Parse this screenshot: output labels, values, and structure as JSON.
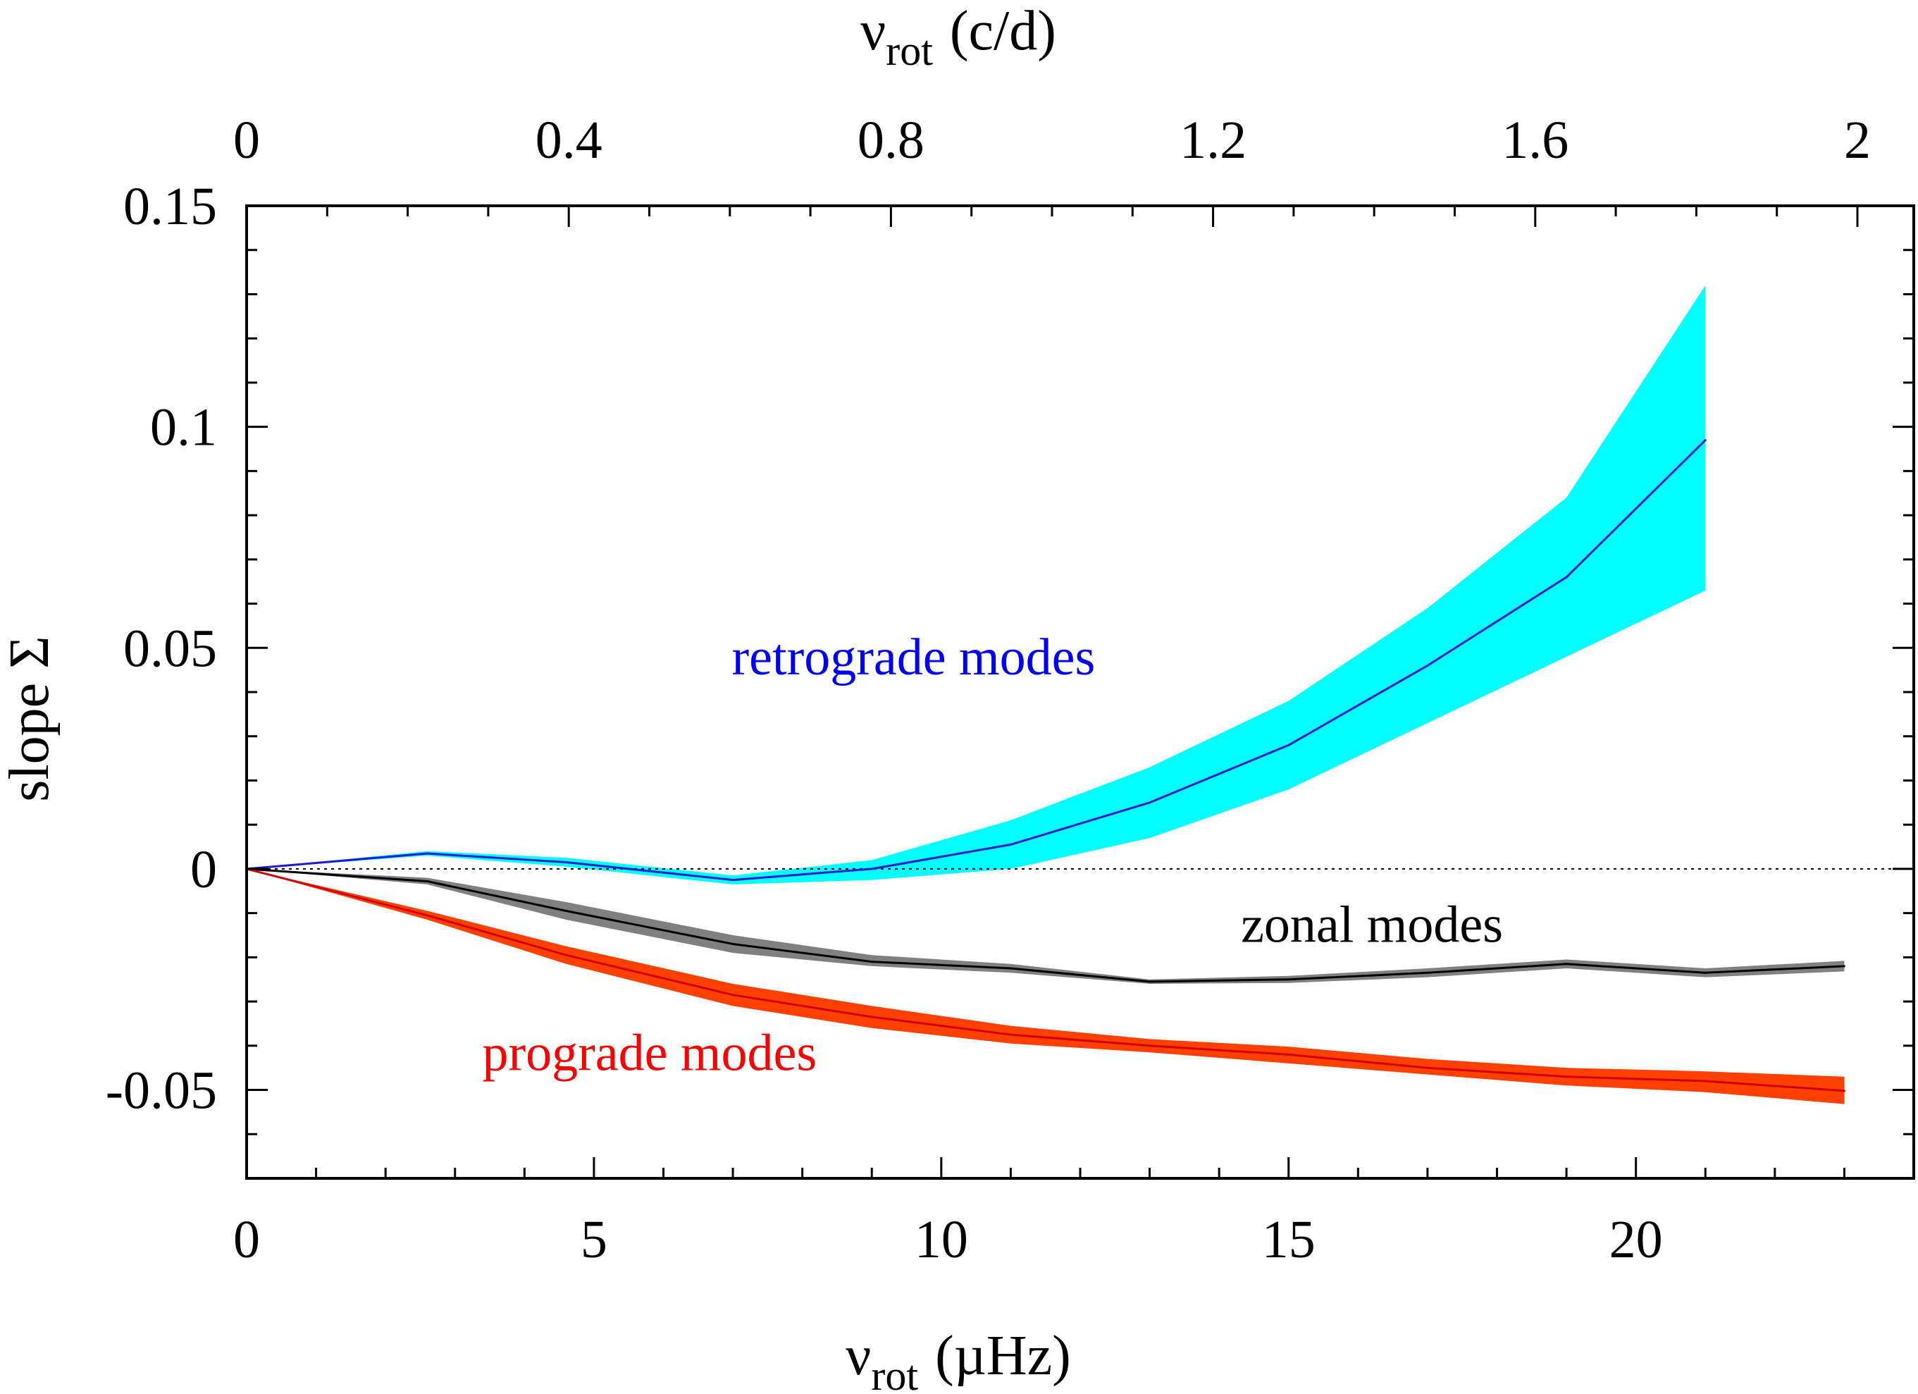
{
  "chart_data": {
    "type": "line",
    "title": "",
    "xlabel": "rot (µHz)",
    "xlabel_symbol": "ν",
    "xlabel_subscript": "rot",
    "xlabel_unit": "(µHz)",
    "x2label_symbol": "ν",
    "x2label_subscript": "rot",
    "x2label_unit": "(c/d)",
    "ylabel": "slope Σ",
    "xlim": [
      0,
      24
    ],
    "ylim": [
      -0.07,
      0.15
    ],
    "x2lim": [
      0,
      2.07
    ],
    "x_ticks": [
      {
        "value": 0,
        "label": "0"
      },
      {
        "value": 5,
        "label": "5"
      },
      {
        "value": 10,
        "label": "10"
      },
      {
        "value": 15,
        "label": "15"
      },
      {
        "value": 20,
        "label": "20"
      }
    ],
    "x2_ticks": [
      {
        "value": 0,
        "label": "0"
      },
      {
        "value": 0.4,
        "label": "0.4"
      },
      {
        "value": 0.8,
        "label": "0.8"
      },
      {
        "value": 1.2,
        "label": "1.2"
      },
      {
        "value": 1.6,
        "label": "1.6"
      },
      {
        "value": 2.0,
        "label": "2"
      }
    ],
    "y_ticks": [
      {
        "value": 0.15,
        "label": "0.15"
      },
      {
        "value": 0.1,
        "label": "0.1"
      },
      {
        "value": 0.05,
        "label": "0.05"
      },
      {
        "value": 0,
        "label": "0"
      },
      {
        "value": -0.05,
        "label": "-0.05"
      }
    ],
    "reference_line": {
      "y": 0,
      "style": "dotted",
      "color": "#000000"
    },
    "series": [
      {
        "name": "retrograde modes",
        "label": "retrograde modes",
        "line_color": "#1c1cd6",
        "band_color": "#00ffff",
        "x": [
          0,
          2.6,
          4.6,
          7,
          9,
          11,
          13,
          15,
          17,
          19,
          21
        ],
        "y": [
          0,
          0.0035,
          0.0015,
          -0.0025,
          0,
          0.0055,
          0.015,
          0.028,
          0.046,
          0.066,
          0.097
        ],
        "lower": [
          0,
          0.003,
          0.0005,
          -0.0035,
          -0.0025,
          0,
          0.007,
          0.018,
          0.033,
          0.048,
          0.063
        ],
        "upper": [
          0,
          0.004,
          0.0025,
          -0.0015,
          0.002,
          0.011,
          0.023,
          0.038,
          0.059,
          0.084,
          0.132
        ]
      },
      {
        "name": "zonal modes",
        "label": "zonal modes",
        "line_color": "#000000",
        "band_color": "#808080",
        "x": [
          0,
          2.6,
          4.6,
          7,
          9,
          11,
          13,
          15,
          17,
          19,
          21,
          23
        ],
        "y": [
          0,
          -0.0028,
          -0.0095,
          -0.017,
          -0.021,
          -0.0225,
          -0.0255,
          -0.025,
          -0.0235,
          -0.0215,
          -0.0235,
          -0.022
        ],
        "lower": [
          0,
          -0.0035,
          -0.0115,
          -0.019,
          -0.022,
          -0.0235,
          -0.026,
          -0.0258,
          -0.0245,
          -0.0225,
          -0.0245,
          -0.0232
        ],
        "upper": [
          0,
          -0.002,
          -0.0075,
          -0.015,
          -0.0195,
          -0.0215,
          -0.025,
          -0.0242,
          -0.0225,
          -0.0205,
          -0.0225,
          -0.0208
        ]
      },
      {
        "name": "prograde modes",
        "label": "prograde modes",
        "line_color": "#d40000",
        "band_color": "#ff4000",
        "x": [
          0,
          2.6,
          4.6,
          7,
          9,
          11,
          13,
          15,
          17,
          19,
          21,
          23
        ],
        "y": [
          0,
          -0.0105,
          -0.0195,
          -0.0285,
          -0.0335,
          -0.0375,
          -0.04,
          -0.042,
          -0.045,
          -0.047,
          -0.048,
          -0.0502
        ],
        "lower": [
          0,
          -0.0115,
          -0.0215,
          -0.031,
          -0.036,
          -0.0395,
          -0.0415,
          -0.044,
          -0.0465,
          -0.049,
          -0.0505,
          -0.0532
        ],
        "upper": [
          0,
          -0.0095,
          -0.0175,
          -0.026,
          -0.031,
          -0.0355,
          -0.0385,
          -0.0402,
          -0.043,
          -0.045,
          -0.0458,
          -0.047
        ]
      }
    ],
    "annotations": [
      {
        "text": "retrograde modes",
        "color": "#0000ff",
        "x": 9.6,
        "y": 0.044
      },
      {
        "text": "zonal modes",
        "color": "#000000",
        "x": 16.2,
        "y": -0.0165
      },
      {
        "text": "prograde modes",
        "color": "#ff0000",
        "x": 5.8,
        "y": -0.0455
      }
    ]
  }
}
